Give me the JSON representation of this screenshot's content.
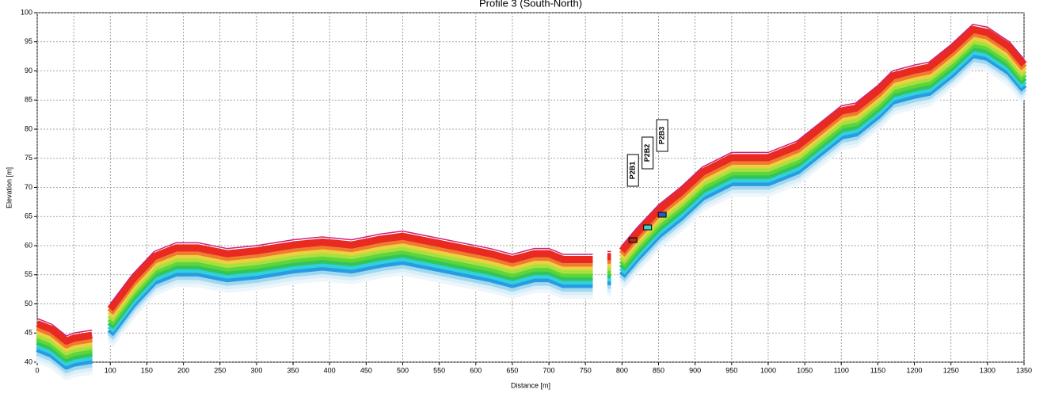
{
  "chart_data": {
    "type": "line",
    "title": "Profile 3 (South-North)",
    "x_label": "Distance [m]",
    "y_label": "Elevation [m]",
    "x": [
      0,
      20,
      40,
      50,
      75,
      88,
      100,
      130,
      160,
      190,
      220,
      260,
      300,
      350,
      390,
      430,
      470,
      500,
      540,
      580,
      620,
      650,
      680,
      700,
      720,
      760,
      770,
      780,
      785,
      792,
      800,
      820,
      850,
      880,
      910,
      950,
      1000,
      1040,
      1070,
      1100,
      1120,
      1150,
      1170,
      1200,
      1220,
      1250,
      1280,
      1300,
      1330,
      1350
    ],
    "values": [
      47.5,
      46.5,
      44.5,
      45,
      45.5,
      null,
      50,
      55,
      59,
      60.5,
      60.5,
      59.5,
      60,
      61,
      61.5,
      61,
      62,
      62.5,
      61.5,
      60.5,
      59.5,
      58.5,
      59.5,
      59.5,
      58.5,
      58.5,
      null,
      59,
      59,
      null,
      60,
      63,
      67,
      70,
      73.5,
      76,
      76,
      78,
      81,
      84,
      84.5,
      87.5,
      90,
      91,
      91.5,
      94.5,
      98,
      97.5,
      95,
      92
    ],
    "color": "#d0207a",
    "xlim": [
      0,
      1350
    ],
    "xticks": [
      0,
      50,
      100,
      150,
      200,
      250,
      300,
      350,
      400,
      450,
      500,
      550,
      600,
      650,
      700,
      750,
      800,
      850,
      900,
      950,
      1000,
      1050,
      1100,
      1150,
      1200,
      1250,
      1300,
      1350
    ],
    "ylim": [
      40,
      100
    ],
    "yticks": [
      40,
      45,
      50,
      55,
      60,
      65,
      70,
      75,
      80,
      85,
      90,
      95,
      100
    ],
    "grid": true,
    "boreholes": [
      {
        "label": "P2B1",
        "x": 815
      },
      {
        "label": "P2B2",
        "x": 835
      },
      {
        "label": "P2B3",
        "x": 855
      }
    ]
  }
}
